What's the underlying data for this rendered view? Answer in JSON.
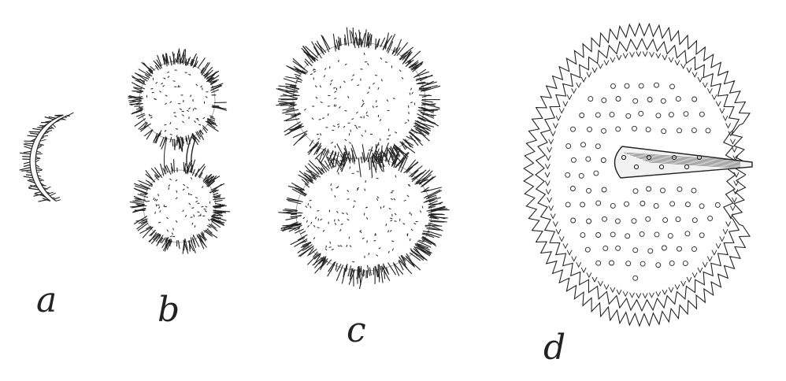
{
  "figure": {
    "labels": {
      "a": "a",
      "b": "b",
      "c": "c",
      "d": "d"
    }
  },
  "colors": {
    "ink": "#222222",
    "background": "#ffffff"
  }
}
